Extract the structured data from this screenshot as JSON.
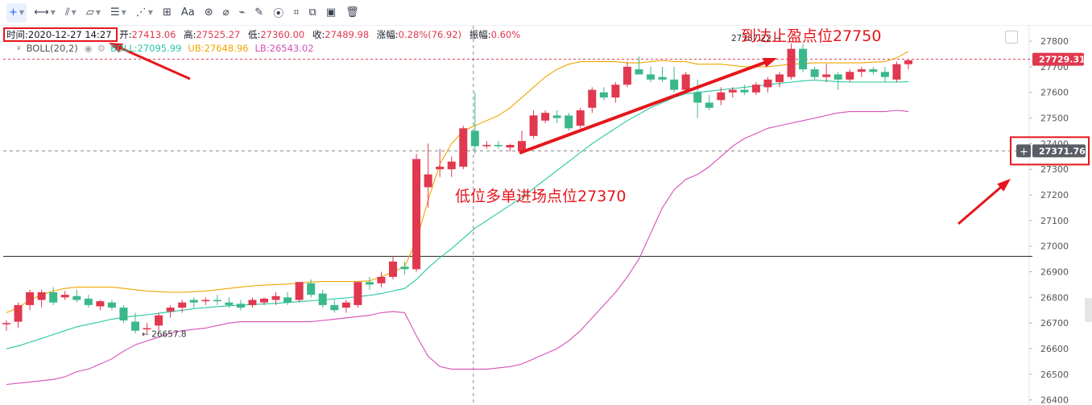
{
  "toolbar": {
    "items": [
      "crosshair-icon",
      "horizontal-line-icon",
      "trend-line-icon",
      "fib-icon",
      "lines-icon",
      "pattern-icon",
      "measure-icon",
      "text-icon",
      "fib-retracement-icon",
      "eraser-icon",
      "ruler-icon",
      "pencil-icon",
      "gann-icon",
      "lock-icon",
      "clone-icon",
      "screenshot-icon",
      "trash-icon"
    ],
    "text_label": "Aa"
  },
  "legend": {
    "time_label": "时间:",
    "time": "2020-12-27 14:27",
    "open_label": "开:",
    "open": "27413.06",
    "high_label": "高:",
    "high": "27525.27",
    "low_label": "低:",
    "low": "27360.00",
    "close_label": "收:",
    "close": "27489.98",
    "change_label": "涨幅:",
    "change": "0.28%(76.92)",
    "amp_label": "振幅:",
    "amp": "0.60%"
  },
  "indicator": {
    "name": "BOLL(20,2)",
    "boll_label": "BOLL:",
    "boll": "27095.99",
    "ub_label": "UB:",
    "ub": "27648.96",
    "lb_label": "LB:",
    "lb": "26543.02"
  },
  "annotations": {
    "top": "到达止盈点位27750",
    "middle": "低位多单进场点位27370"
  },
  "chart_data": {
    "type": "candlestick",
    "y_ticks": [
      26400,
      26500,
      26600,
      26700,
      26800,
      26900,
      27000,
      27100,
      27200,
      27300,
      27400,
      27500,
      27600,
      27700,
      27800
    ],
    "ylim": [
      26380,
      27860
    ],
    "last_price": "27729.31",
    "cursor_price": "27371.76",
    "max_label": "27787.22",
    "min_label": "26657.8",
    "ref_line": 26960,
    "candles": [
      [
        26695,
        26710,
        26670,
        26700
      ],
      [
        26705,
        26780,
        26680,
        26770
      ],
      [
        26770,
        26830,
        26750,
        26820
      ],
      [
        26790,
        26830,
        26760,
        26820
      ],
      [
        26820,
        26840,
        26770,
        26780
      ],
      [
        26800,
        26825,
        26790,
        26810
      ],
      [
        26805,
        26830,
        26780,
        26790
      ],
      [
        26795,
        26810,
        26760,
        26770
      ],
      [
        26765,
        26790,
        26750,
        26785
      ],
      [
        26780,
        26790,
        26750,
        26760
      ],
      [
        26760,
        26770,
        26700,
        26710
      ],
      [
        26705,
        26740,
        26660,
        26670
      ],
      [
        26675,
        26700,
        26660,
        26680
      ],
      [
        26690,
        26740,
        26670,
        26730
      ],
      [
        26745,
        26770,
        26720,
        26760
      ],
      [
        26760,
        26790,
        26740,
        26780
      ],
      [
        26790,
        26800,
        26760,
        26780
      ],
      [
        26785,
        26800,
        26770,
        26790
      ],
      [
        26790,
        26810,
        26770,
        26785
      ],
      [
        26780,
        26800,
        26760,
        26770
      ],
      [
        26775,
        26790,
        26750,
        26760
      ],
      [
        26770,
        26800,
        26760,
        26790
      ],
      [
        26780,
        26800,
        26770,
        26795
      ],
      [
        26790,
        26820,
        26770,
        26805
      ],
      [
        26800,
        26820,
        26770,
        26780
      ],
      [
        26790,
        26860,
        26780,
        26860
      ],
      [
        26855,
        26870,
        26800,
        26810
      ],
      [
        26815,
        26830,
        26760,
        26770
      ],
      [
        26770,
        26790,
        26740,
        26750
      ],
      [
        26760,
        26790,
        26740,
        26780
      ],
      [
        26770,
        26860,
        26760,
        26860
      ],
      [
        26860,
        26880,
        26830,
        26850
      ],
      [
        26855,
        26900,
        26840,
        26880
      ],
      [
        26880,
        26960,
        26870,
        26940
      ],
      [
        26920,
        26940,
        26890,
        26910
      ],
      [
        26910,
        27360,
        26900,
        27340
      ],
      [
        27230,
        27400,
        27150,
        27280
      ],
      [
        27300,
        27380,
        27270,
        27310
      ],
      [
        27300,
        27350,
        27270,
        27330
      ],
      [
        27310,
        27470,
        27300,
        27460
      ],
      [
        27450,
        27600,
        27360,
        27390
      ],
      [
        27390,
        27410,
        27380,
        27395
      ],
      [
        27395,
        27410,
        27380,
        27390
      ],
      [
        27385,
        27400,
        27370,
        27395
      ],
      [
        27370,
        27450,
        27360,
        27410
      ],
      [
        27430,
        27530,
        27420,
        27510
      ],
      [
        27490,
        27530,
        27480,
        27520
      ],
      [
        27510,
        27530,
        27480,
        27500
      ],
      [
        27510,
        27520,
        27450,
        27460
      ],
      [
        27470,
        27540,
        27460,
        27530
      ],
      [
        27540,
        27620,
        27520,
        27610
      ],
      [
        27600,
        27620,
        27570,
        27580
      ],
      [
        27580,
        27640,
        27560,
        27630
      ],
      [
        27630,
        27720,
        27620,
        27700
      ],
      [
        27690,
        27740,
        27670,
        27670
      ],
      [
        27670,
        27700,
        27640,
        27650
      ],
      [
        27660,
        27700,
        27640,
        27650
      ],
      [
        27650,
        27700,
        27600,
        27610
      ],
      [
        27610,
        27680,
        27600,
        27670
      ],
      [
        27600,
        27650,
        27500,
        27560
      ],
      [
        27560,
        27590,
        27530,
        27540
      ],
      [
        27570,
        27620,
        27550,
        27600
      ],
      [
        27600,
        27620,
        27580,
        27610
      ],
      [
        27610,
        27630,
        27590,
        27600
      ],
      [
        27600,
        27640,
        27590,
        27630
      ],
      [
        27620,
        27660,
        27600,
        27650
      ],
      [
        27640,
        27680,
        27620,
        27670
      ],
      [
        27660,
        27790,
        27650,
        27770
      ],
      [
        27770,
        27790,
        27680,
        27690
      ],
      [
        27690,
        27700,
        27650,
        27660
      ],
      [
        27660,
        27710,
        27640,
        27670
      ],
      [
        27670,
        27680,
        27610,
        27650
      ],
      [
        27650,
        27690,
        27640,
        27680
      ],
      [
        27680,
        27700,
        27660,
        27690
      ],
      [
        27690,
        27700,
        27670,
        27680
      ],
      [
        27680,
        27700,
        27640,
        27660
      ],
      [
        27650,
        27720,
        27640,
        27710
      ],
      [
        27710,
        27730,
        27690,
        27725
      ]
    ],
    "mid_band": [
      26600,
      26610,
      26625,
      26640,
      26655,
      26670,
      26685,
      26695,
      26705,
      26715,
      26722,
      26728,
      26732,
      26738,
      26744,
      26750,
      26756,
      26760,
      26764,
      26767,
      26770,
      26772,
      26774,
      26777,
      26780,
      26783,
      26787,
      26790,
      26794,
      26798,
      26803,
      26808,
      26815,
      26825,
      26835,
      26870,
      26915,
      26955,
      26990,
      27030,
      27070,
      27100,
      27130,
      27160,
      27190,
      27225,
      27260,
      27295,
      27330,
      27365,
      27400,
      27430,
      27460,
      27490,
      27515,
      27540,
      27560,
      27580,
      27595,
      27600,
      27605,
      27610,
      27615,
      27620,
      27625,
      27630,
      27635,
      27640,
      27645,
      27648,
      27645,
      27642,
      27640,
      27640,
      27640,
      27640,
      27640,
      27642
    ],
    "upper_band": [
      26740,
      26760,
      26790,
      26810,
      26825,
      26835,
      26840,
      26840,
      26840,
      26840,
      26835,
      26830,
      26825,
      26822,
      26820,
      26820,
      26822,
      26825,
      26830,
      26835,
      26840,
      26845,
      26848,
      26850,
      26852,
      26855,
      26860,
      26862,
      26862,
      26862,
      26862,
      26865,
      26880,
      26900,
      26920,
      27020,
      27180,
      27320,
      27400,
      27450,
      27470,
      27490,
      27510,
      27540,
      27580,
      27620,
      27660,
      27690,
      27710,
      27720,
      27720,
      27720,
      27720,
      27715,
      27715,
      27720,
      27725,
      27720,
      27720,
      27710,
      27710,
      27710,
      27705,
      27700,
      27700,
      27700,
      27705,
      27710,
      27712,
      27715,
      27715,
      27715,
      27715,
      27715,
      27718,
      27720,
      27735,
      27760
    ],
    "lower_band": [
      26460,
      26465,
      26470,
      26475,
      26480,
      26490,
      26510,
      26520,
      26540,
      26560,
      26590,
      26615,
      26630,
      26645,
      26660,
      26670,
      26675,
      26680,
      26690,
      26700,
      26705,
      26705,
      26705,
      26705,
      26705,
      26705,
      26705,
      26710,
      26715,
      26720,
      26725,
      26730,
      26740,
      26745,
      26740,
      26650,
      26570,
      26530,
      26520,
      26520,
      26520,
      26520,
      26525,
      26530,
      26540,
      26560,
      26580,
      26600,
      26630,
      26670,
      26720,
      26770,
      26820,
      26880,
      26950,
      27050,
      27150,
      27220,
      27260,
      27280,
      27310,
      27350,
      27390,
      27420,
      27440,
      27460,
      27470,
      27480,
      27490,
      27500,
      27510,
      27520,
      27525,
      27525,
      27525,
      27525,
      27530,
      27525
    ]
  }
}
